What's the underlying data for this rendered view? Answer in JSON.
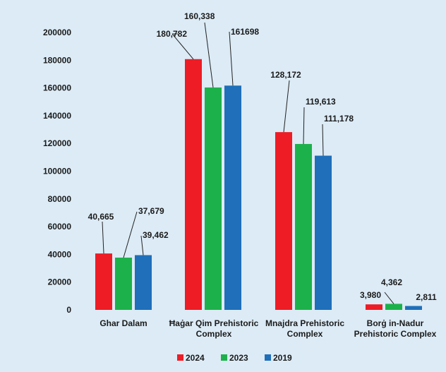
{
  "chart_data": {
    "type": "bar",
    "title": "",
    "xlabel": "",
    "ylabel": "",
    "ylim": [
      0,
      200000
    ],
    "y_ticks": [
      "0",
      "20000",
      "40000",
      "60000",
      "80000",
      "100000",
      "120000",
      "140000",
      "160000",
      "180000",
      "200000"
    ],
    "grid": false,
    "legend_position": "bottom",
    "categories": [
      [
        "Ghar Dalam"
      ],
      [
        "Ħaġar Qim Prehistoric",
        "Complex"
      ],
      [
        "Mnajdra Prehistoric",
        "Complex"
      ],
      [
        "Borġ in-Nadur",
        "Prehistoric Complex"
      ]
    ],
    "series": [
      {
        "name": "2024",
        "color": "#ee1c25",
        "values": [
          40665,
          180782,
          128172,
          3980
        ],
        "labels": [
          "40,665",
          "180,782",
          "128,172",
          "3,980"
        ]
      },
      {
        "name": "2023",
        "color": "#1db14b",
        "values": [
          37679,
          160338,
          119613,
          4362
        ],
        "labels": [
          "37,679",
          "160,338",
          "119,613",
          "4,362"
        ]
      },
      {
        "name": "2019",
        "color": "#1f6fba",
        "values": [
          39462,
          161698,
          111178,
          2811
        ],
        "labels": [
          "39,462",
          "161698",
          "111,178",
          "2,811"
        ]
      }
    ]
  }
}
